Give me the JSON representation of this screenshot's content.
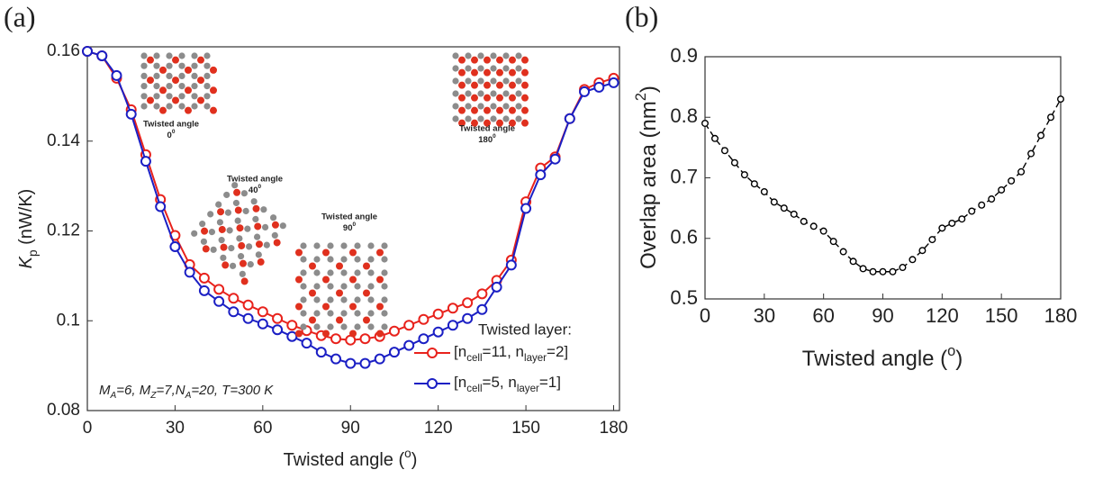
{
  "chart_data": [
    {
      "type": "line",
      "panel": "(a)",
      "xlabel": [
        "Twisted angle (",
        "o",
        ")"
      ],
      "ylabel": [
        "K",
        "p",
        " (nW/K)"
      ],
      "x": [
        0,
        5,
        10,
        15,
        20,
        25,
        30,
        35,
        40,
        45,
        50,
        55,
        60,
        65,
        70,
        75,
        80,
        85,
        90,
        95,
        100,
        105,
        110,
        115,
        120,
        125,
        130,
        135,
        140,
        145,
        150,
        155,
        160,
        165,
        170,
        175,
        180
      ],
      "series": [
        {
          "name": [
            "[n",
            "cell",
            "=11, n",
            "layer",
            "=2]"
          ],
          "color": "#e8221c",
          "values": [
            0.16,
            0.159,
            0.154,
            0.147,
            0.137,
            0.127,
            0.119,
            0.1125,
            0.1095,
            0.107,
            0.105,
            0.1035,
            0.102,
            0.1005,
            0.099,
            0.0978,
            0.0967,
            0.096,
            0.0957,
            0.096,
            0.0965,
            0.0977,
            0.099,
            0.1003,
            0.1015,
            0.1028,
            0.104,
            0.106,
            0.109,
            0.1135,
            0.1265,
            0.134,
            0.1365,
            0.145,
            0.1515,
            0.153,
            0.154
          ]
        },
        {
          "name": [
            "[n",
            "cell",
            "=5, n",
            "layer",
            "=1]"
          ],
          "color": "#1b1fc4",
          "values": [
            0.16,
            0.159,
            0.1546,
            0.146,
            0.1355,
            0.1254,
            0.1165,
            0.1108,
            0.1067,
            0.1043,
            0.102,
            0.1005,
            0.0993,
            0.098,
            0.0965,
            0.095,
            0.093,
            0.0915,
            0.0905,
            0.0905,
            0.0915,
            0.093,
            0.0945,
            0.096,
            0.0975,
            0.099,
            0.1005,
            0.1025,
            0.1075,
            0.1124,
            0.125,
            0.1325,
            0.136,
            0.145,
            0.151,
            0.152,
            0.153
          ]
        }
      ],
      "legend_title": "Twisted layer:",
      "annotation": [
        "M",
        "A",
        "=6, M",
        "Z",
        "=7,N",
        "A",
        "=20, T=300 K"
      ],
      "insets": [
        {
          "label": "Twisted angle",
          "angle": [
            "0",
            "0"
          ]
        },
        {
          "label": "Twisted angle",
          "angle": [
            "40",
            "0"
          ]
        },
        {
          "label": "Twisted angle",
          "angle": [
            "90",
            "0"
          ]
        },
        {
          "label": "Twisted angle",
          "angle": [
            "180",
            "0"
          ]
        }
      ],
      "xlim": [
        0,
        182
      ],
      "xticks": [
        0,
        30,
        60,
        90,
        120,
        150,
        180
      ],
      "ylim": [
        0.08,
        0.161
      ],
      "yticks": [
        0.08,
        0.1,
        0.12,
        0.14,
        0.16
      ]
    },
    {
      "type": "line",
      "panel": "(b)",
      "xlabel": [
        "Twisted angle (",
        "o",
        ")"
      ],
      "ylabel": [
        "Overlap area (nm",
        "2",
        ")"
      ],
      "x": [
        0,
        5,
        10,
        15,
        20,
        25,
        30,
        35,
        40,
        45,
        50,
        55,
        60,
        65,
        70,
        75,
        80,
        85,
        90,
        95,
        100,
        105,
        110,
        115,
        120,
        125,
        130,
        135,
        140,
        145,
        150,
        155,
        160,
        165,
        170,
        175,
        180
      ],
      "series": [
        {
          "color": "#000000",
          "dashed": true,
          "values": [
            0.79,
            0.765,
            0.745,
            0.725,
            0.705,
            0.69,
            0.677,
            0.66,
            0.65,
            0.64,
            0.628,
            0.62,
            0.612,
            0.595,
            0.578,
            0.562,
            0.55,
            0.545,
            0.545,
            0.545,
            0.552,
            0.565,
            0.58,
            0.598,
            0.617,
            0.625,
            0.632,
            0.645,
            0.655,
            0.665,
            0.68,
            0.695,
            0.71,
            0.74,
            0.77,
            0.8,
            0.83
          ]
        }
      ],
      "xlim": [
        0,
        180
      ],
      "xticks": [
        0,
        30,
        60,
        90,
        120,
        150,
        180
      ],
      "ylim": [
        0.5,
        0.9
      ],
      "yticks": [
        0.5,
        0.6,
        0.7,
        0.8,
        0.9
      ]
    }
  ]
}
